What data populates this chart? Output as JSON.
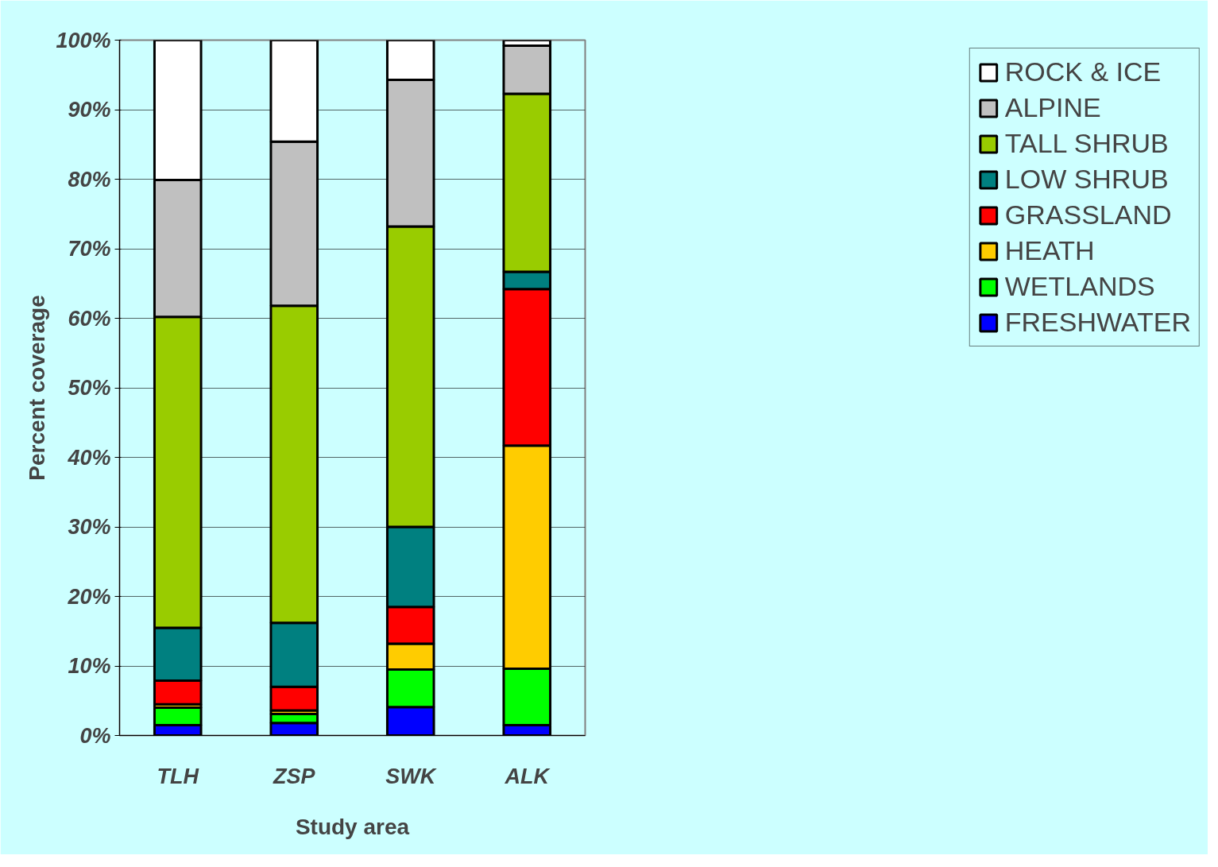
{
  "chart_data": {
    "type": "bar",
    "stacked": true,
    "xlabel": "Study area",
    "ylabel": "Percent coverage",
    "categories": [
      "TLH",
      "ZSP",
      "SWK",
      "ALK"
    ],
    "series": [
      {
        "name": "FRESHWATER",
        "color": "#0000ff",
        "values": [
          1.5,
          1.8,
          4.1,
          1.5
        ]
      },
      {
        "name": "WETLANDS",
        "color": "#00ff00",
        "values": [
          2.5,
          1.3,
          5.4,
          8.1
        ]
      },
      {
        "name": "HEATH",
        "color": "#ffcc00",
        "values": [
          0.5,
          0.5,
          3.7,
          32.1
        ]
      },
      {
        "name": "GRASSLAND",
        "color": "#ff0000",
        "values": [
          3.4,
          3.4,
          5.3,
          22.5
        ]
      },
      {
        "name": "LOW SHRUB",
        "color": "#008080",
        "values": [
          7.6,
          9.2,
          11.5,
          2.5
        ]
      },
      {
        "name": "TALL SHRUB",
        "color": "#99cc00",
        "values": [
          44.7,
          45.6,
          43.2,
          25.6
        ]
      },
      {
        "name": "ALPINE",
        "color": "#c0c0c0",
        "values": [
          19.7,
          23.6,
          21.1,
          6.9
        ]
      },
      {
        "name": "ROCK & ICE",
        "color": "#ffffff",
        "values": [
          20.1,
          14.6,
          5.7,
          0.8
        ]
      }
    ],
    "ylim": [
      0,
      100
    ],
    "yticks": [
      {
        "value": 0,
        "label": "0%"
      },
      {
        "value": 10,
        "label": "10%"
      },
      {
        "value": 20,
        "label": "20%"
      },
      {
        "value": 30,
        "label": "30%"
      },
      {
        "value": 40,
        "label": "40%"
      },
      {
        "value": 50,
        "label": "50%"
      },
      {
        "value": 60,
        "label": "60%"
      },
      {
        "value": 70,
        "label": "70%"
      },
      {
        "value": 80,
        "label": "80%"
      },
      {
        "value": 90,
        "label": "90%"
      },
      {
        "value": 100,
        "label": "100%"
      }
    ],
    "grid": "y",
    "legend": "right"
  }
}
